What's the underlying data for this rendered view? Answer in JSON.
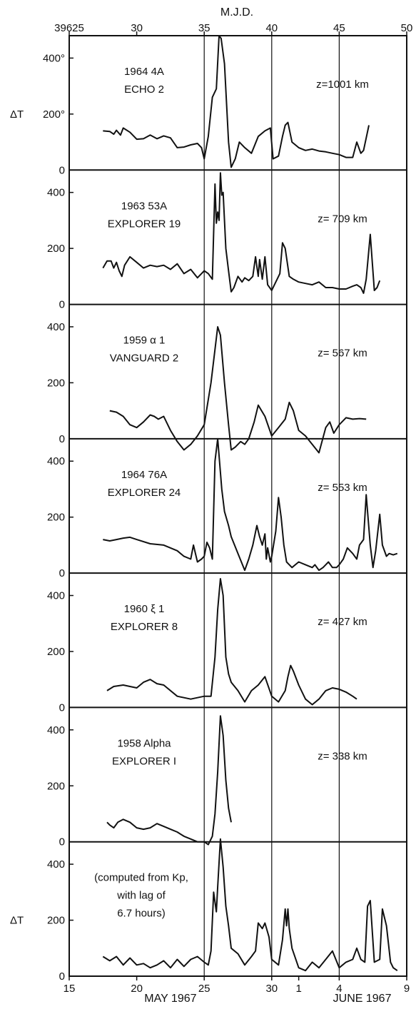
{
  "chart_data": {
    "type": "line",
    "top_axis": {
      "title": "M.J.D.",
      "ticks": [
        {
          "day": 15,
          "label": "39625"
        },
        {
          "day": 20,
          "label": "30"
        },
        {
          "day": 25,
          "label": "35"
        },
        {
          "day": 30,
          "label": "40"
        },
        {
          "day": 35,
          "label": "45"
        },
        {
          "day": 40,
          "label": "50"
        }
      ]
    },
    "bottom_axis": {
      "ticks": [
        {
          "day": 15,
          "label": "15"
        },
        {
          "day": 20,
          "label": "20"
        },
        {
          "day": 25,
          "label": "25"
        },
        {
          "day": 30,
          "label": "30"
        },
        {
          "day": 32,
          "label": "1"
        },
        {
          "day": 35,
          "label": "4"
        },
        {
          "day": 40,
          "label": "9"
        }
      ],
      "month_labels": [
        {
          "day": 22.5,
          "label": "MAY 1967"
        },
        {
          "day": 36.7,
          "label": "JUNE 1967"
        }
      ]
    },
    "xlim": [
      15,
      40
    ],
    "ylim": [
      0,
      480
    ],
    "vlines": [
      25,
      30,
      35
    ],
    "panels": [
      {
        "name_line1": "1964 4A",
        "name_line2": "ECHO 2",
        "altitude": "z=1001 km",
        "ylabel": "ΔT",
        "yticks": [
          {
            "v": 0,
            "t": "0"
          },
          {
            "v": 200,
            "t": "200°"
          },
          {
            "v": 400,
            "t": "400°"
          }
        ],
        "x": [
          17.5,
          18.0,
          18.3,
          18.5,
          18.8,
          19.0,
          19.5,
          20.0,
          20.5,
          21.0,
          21.5,
          22.0,
          22.5,
          23.0,
          23.5,
          24.0,
          24.5,
          24.8,
          25.0,
          25.3,
          25.6,
          25.9,
          26.1,
          26.25,
          26.5,
          26.8,
          27.0,
          27.3,
          27.6,
          28.0,
          28.5,
          29.0,
          29.5,
          29.9,
          30.1,
          30.5,
          30.8,
          31.0,
          31.2,
          31.5,
          32.0,
          32.5,
          33.0,
          33.5,
          34.0,
          34.5,
          35.0,
          35.5,
          36.0,
          36.3,
          36.6,
          36.8,
          37.2
        ],
        "values": [
          140,
          138,
          128,
          142,
          125,
          150,
          135,
          110,
          112,
          125,
          112,
          122,
          115,
          80,
          82,
          90,
          95,
          80,
          40,
          120,
          260,
          290,
          480,
          470,
          380,
          100,
          10,
          40,
          100,
          80,
          60,
          120,
          140,
          150,
          40,
          50,
          120,
          160,
          170,
          100,
          80,
          70,
          75,
          68,
          65,
          60,
          55,
          45,
          45,
          100,
          60,
          70,
          160
        ]
      },
      {
        "name_line1": "1963 53A",
        "name_line2": "EXPLORER 19",
        "altitude": "z= 709 km",
        "ylabel": "",
        "yticks": [
          {
            "v": 0,
            "t": "0"
          },
          {
            "v": 200,
            "t": "200"
          },
          {
            "v": 400,
            "t": "400"
          }
        ],
        "x": [
          17.5,
          17.8,
          18.1,
          18.3,
          18.5,
          18.7,
          18.9,
          19.1,
          19.5,
          20.0,
          20.5,
          21.0,
          21.5,
          22.0,
          22.5,
          23.0,
          23.5,
          24.0,
          24.5,
          25.0,
          25.3,
          25.6,
          25.8,
          25.9,
          26.0,
          26.1,
          26.2,
          26.3,
          26.4,
          26.6,
          26.8,
          27.0,
          27.2,
          27.5,
          27.8,
          28.0,
          28.3,
          28.6,
          28.8,
          29.0,
          29.1,
          29.3,
          29.5,
          29.7,
          30.0,
          30.3,
          30.6,
          30.8,
          31.0,
          31.3,
          31.6,
          32.0,
          32.5,
          33.0,
          33.5,
          34.0,
          34.5,
          35.0,
          35.5,
          36.0,
          36.3,
          36.6,
          36.8,
          37.0,
          37.3,
          37.6,
          37.8,
          38.0
        ],
        "values": [
          130,
          155,
          155,
          130,
          150,
          120,
          100,
          140,
          170,
          150,
          130,
          140,
          135,
          140,
          125,
          145,
          110,
          125,
          95,
          120,
          110,
          90,
          430,
          290,
          330,
          300,
          470,
          390,
          400,
          200,
          120,
          45,
          60,
          100,
          80,
          95,
          85,
          100,
          170,
          100,
          160,
          90,
          170,
          70,
          50,
          80,
          110,
          220,
          200,
          100,
          90,
          80,
          75,
          70,
          80,
          60,
          60,
          55,
          55,
          65,
          70,
          60,
          40,
          90,
          250,
          50,
          60,
          85
        ]
      },
      {
        "name_line1": "1959 α 1",
        "name_line2": "VANGUARD 2",
        "altitude": "z= 567 km",
        "ylabel": "",
        "yticks": [
          {
            "v": 0,
            "t": "0"
          },
          {
            "v": 200,
            "t": "200"
          },
          {
            "v": 400,
            "t": "400"
          }
        ],
        "x": [
          18.0,
          18.5,
          19.0,
          19.5,
          20.0,
          20.5,
          21.0,
          21.3,
          21.6,
          22.0,
          22.5,
          23.0,
          23.5,
          24.0,
          24.5,
          25.0,
          25.5,
          26.0,
          26.2,
          26.5,
          26.8,
          27.0,
          27.3,
          27.7,
          28.0,
          28.3,
          28.7,
          29.0,
          29.5,
          30.0,
          30.5,
          31.0,
          31.3,
          31.6,
          32.0,
          32.5,
          33.0,
          33.5,
          34.0,
          34.3,
          34.6,
          35.0,
          35.5,
          36.0,
          36.5,
          37.0
        ],
        "values": [
          100,
          95,
          80,
          50,
          40,
          60,
          85,
          80,
          70,
          80,
          30,
          -10,
          -40,
          -20,
          10,
          50,
          200,
          400,
          370,
          200,
          50,
          -40,
          -30,
          -10,
          -20,
          0,
          60,
          120,
          80,
          10,
          40,
          70,
          130,
          100,
          30,
          10,
          -20,
          -50,
          40,
          60,
          20,
          50,
          75,
          70,
          72,
          70
        ]
      },
      {
        "name_line1": "1964 76A",
        "name_line2": "EXPLORER 24",
        "altitude": "z= 553 km",
        "ylabel": "",
        "yticks": [
          {
            "v": 0,
            "t": "0"
          },
          {
            "v": 200,
            "t": "200"
          },
          {
            "v": 400,
            "t": "400"
          }
        ],
        "x": [
          17.5,
          18.0,
          18.5,
          19.0,
          19.5,
          20.0,
          21.0,
          22.0,
          23.0,
          23.5,
          24.0,
          24.2,
          24.5,
          24.8,
          25.0,
          25.2,
          25.4,
          25.6,
          25.8,
          26.0,
          26.1,
          26.3,
          26.5,
          26.8,
          27.0,
          27.5,
          28.0,
          28.3,
          28.6,
          28.9,
          29.1,
          29.3,
          29.5,
          29.6,
          29.7,
          29.9,
          30.0,
          30.3,
          30.5,
          30.7,
          30.9,
          31.1,
          31.3,
          31.5,
          32.0,
          32.5,
          33.0,
          33.2,
          33.5,
          33.8,
          34.0,
          34.2,
          34.5,
          34.8,
          35.0,
          35.3,
          35.6,
          36.0,
          36.3,
          36.5,
          36.8,
          37.0,
          37.3,
          37.5,
          37.7,
          38.0,
          38.2,
          38.5,
          38.7,
          39.0,
          39.3
        ],
        "values": [
          120,
          115,
          120,
          125,
          128,
          120,
          105,
          100,
          80,
          60,
          50,
          100,
          40,
          50,
          60,
          110,
          90,
          50,
          400,
          480,
          420,
          300,
          220,
          170,
          130,
          70,
          10,
          50,
          100,
          170,
          130,
          100,
          140,
          50,
          90,
          40,
          60,
          150,
          270,
          200,
          100,
          40,
          30,
          20,
          40,
          30,
          20,
          30,
          10,
          20,
          30,
          40,
          20,
          20,
          30,
          50,
          90,
          70,
          50,
          100,
          120,
          280,
          100,
          20,
          80,
          210,
          100,
          60,
          70,
          65,
          70
        ]
      },
      {
        "name_line1": "1960 ξ 1",
        "name_line2": "EXPLORER 8",
        "altitude": "z= 427 km",
        "ylabel": "",
        "yticks": [
          {
            "v": 0,
            "t": "0"
          },
          {
            "v": 200,
            "t": "200"
          },
          {
            "v": 400,
            "t": "400"
          }
        ],
        "x": [
          17.8,
          18.3,
          19.0,
          19.5,
          20.0,
          20.5,
          21.0,
          21.5,
          22.0,
          23.0,
          24.0,
          25.0,
          25.5,
          25.8,
          26.0,
          26.2,
          26.4,
          26.6,
          26.8,
          27.0,
          27.5,
          28.0,
          28.5,
          29.0,
          29.5,
          30.0,
          30.5,
          31.0,
          31.2,
          31.4,
          31.6,
          32.0,
          32.5,
          33.0,
          33.5,
          34.0,
          34.5,
          35.0,
          35.5,
          36.0,
          36.3
        ],
        "values": [
          60,
          75,
          80,
          75,
          70,
          90,
          100,
          85,
          80,
          40,
          30,
          40,
          40,
          180,
          350,
          460,
          400,
          180,
          120,
          90,
          60,
          20,
          60,
          80,
          110,
          40,
          20,
          60,
          110,
          150,
          130,
          80,
          30,
          10,
          30,
          60,
          70,
          65,
          55,
          40,
          30
        ]
      },
      {
        "name_line1": "1958 Alpha",
        "name_line2": "EXPLORER I",
        "altitude": "z= 338 km",
        "ylabel": "",
        "yticks": [
          {
            "v": 0,
            "t": "0"
          },
          {
            "v": 200,
            "t": "200"
          },
          {
            "v": 400,
            "t": "400"
          }
        ],
        "x": [
          17.8,
          18.0,
          18.3,
          18.6,
          19.0,
          19.5,
          20.0,
          20.5,
          21.0,
          21.5,
          22.0,
          22.5,
          23.0,
          23.5,
          24.0,
          24.5,
          25.0,
          25.3,
          25.6,
          25.8,
          26.0,
          26.2,
          26.4,
          26.6,
          26.8,
          27.0
        ],
        "values": [
          70,
          60,
          50,
          70,
          80,
          70,
          50,
          45,
          50,
          65,
          55,
          45,
          35,
          20,
          10,
          0,
          0,
          -10,
          20,
          100,
          250,
          450,
          380,
          220,
          120,
          70
        ]
      },
      {
        "name_line1": "(computed from Kp,",
        "name_line2": "with lag of",
        "name_line3": "6.7 hours)",
        "altitude": "",
        "ylabel": "ΔT",
        "yticks": [
          {
            "v": 0,
            "t": "0"
          },
          {
            "v": 200,
            "t": "200"
          },
          {
            "v": 400,
            "t": "400"
          }
        ],
        "x": [
          17.5,
          18.0,
          18.5,
          19.0,
          19.5,
          20.0,
          20.5,
          21.0,
          21.5,
          22.0,
          22.5,
          23.0,
          23.5,
          24.0,
          24.5,
          25.0,
          25.3,
          25.5,
          25.7,
          25.9,
          26.0,
          26.2,
          26.4,
          26.6,
          26.8,
          27.0,
          27.5,
          28.0,
          28.5,
          28.8,
          29.0,
          29.3,
          29.5,
          29.8,
          30.0,
          30.5,
          30.8,
          31.0,
          31.1,
          31.2,
          31.3,
          31.5,
          32.0,
          32.5,
          33.0,
          33.5,
          34.0,
          34.5,
          35.0,
          35.5,
          36.0,
          36.3,
          36.6,
          36.9,
          37.1,
          37.3,
          37.6,
          38.0,
          38.2,
          38.5,
          38.8,
          39.0,
          39.3
        ],
        "values": [
          70,
          55,
          70,
          40,
          65,
          40,
          45,
          30,
          40,
          55,
          30,
          60,
          35,
          60,
          70,
          50,
          40,
          90,
          300,
          230,
          320,
          490,
          390,
          250,
          180,
          100,
          80,
          40,
          70,
          90,
          190,
          170,
          190,
          140,
          60,
          40,
          130,
          240,
          180,
          240,
          170,
          100,
          30,
          20,
          50,
          30,
          60,
          90,
          30,
          50,
          60,
          100,
          60,
          50,
          250,
          270,
          50,
          60,
          240,
          180,
          50,
          30,
          20
        ]
      }
    ]
  }
}
